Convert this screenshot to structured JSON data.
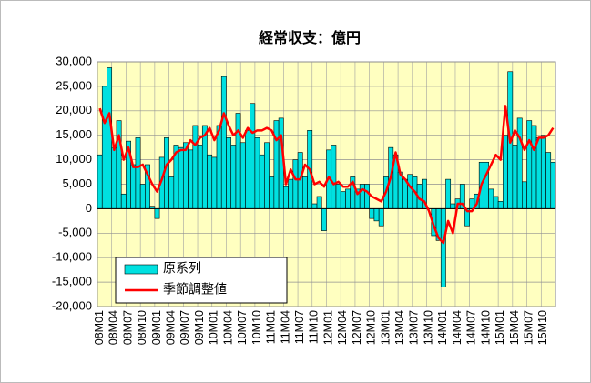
{
  "chart_data": {
    "type": "bar_line",
    "title": "経常収支：億円",
    "categories": [
      "08M01",
      null,
      null,
      "08M04",
      null,
      null,
      "08M07",
      null,
      null,
      "08M10",
      null,
      null,
      "09M01",
      null,
      null,
      "09M04",
      null,
      null,
      "09M07",
      null,
      null,
      "09M10",
      null,
      null,
      "10M01",
      null,
      null,
      "10M04",
      null,
      null,
      "10M07",
      null,
      null,
      "10M10",
      null,
      null,
      "11M01",
      null,
      null,
      "11M04",
      null,
      null,
      "11M07",
      null,
      null,
      "11M10",
      null,
      null,
      "12M01",
      null,
      null,
      "12M04",
      null,
      null,
      "12M07",
      null,
      null,
      "12M10",
      null,
      null,
      "13M01",
      null,
      null,
      "13M04",
      null,
      null,
      "13M07",
      null,
      null,
      "13M10",
      null,
      null,
      "14M01",
      null,
      null,
      "14M04",
      null,
      null,
      "14M07",
      null,
      null,
      "14M10",
      null,
      null,
      "15M01",
      null,
      null,
      "15M04",
      null,
      null,
      "15M07",
      null,
      null,
      "15M10",
      null,
      null
    ],
    "series": [
      {
        "name": "原系列",
        "color": "#00e0e0",
        "kind": "bar",
        "values": [
          11000,
          25000,
          28800,
          12500,
          18000,
          3000,
          13800,
          9000,
          14500,
          5000,
          9000,
          500,
          -2000,
          10500,
          14500,
          6500,
          13000,
          12500,
          13500,
          12000,
          17000,
          13000,
          17000,
          11000,
          10500,
          17000,
          27000,
          14500,
          13000,
          19500,
          13500,
          16000,
          21500,
          14500,
          11000,
          13500,
          6500,
          18000,
          18500,
          4500,
          6000,
          10000,
          11500,
          6500,
          16000,
          1000,
          2500,
          -4500,
          12000,
          13000,
          5000,
          3500,
          4000,
          6500,
          4000,
          5000,
          5000,
          -2000,
          -2500,
          -3500,
          6500,
          12500,
          11000,
          7500,
          6000,
          7000,
          6500,
          5000,
          6000,
          0,
          -5500,
          -6500,
          -16000,
          6000,
          1000,
          2000,
          5000,
          -3500,
          2000,
          3000,
          9500,
          9500,
          4000,
          2500,
          1500,
          15000,
          28000,
          13000,
          18500,
          5500,
          18000,
          17000,
          14500,
          15000,
          11500,
          9500
        ]
      },
      {
        "name": "季節調整値",
        "color": "#ff0000",
        "kind": "line",
        "values": [
          20500,
          17500,
          19500,
          12000,
          15000,
          10000,
          12500,
          8500,
          8500,
          9000,
          7000,
          5000,
          3500,
          6000,
          9000,
          10000,
          11500,
          12000,
          12000,
          14000,
          13000,
          14500,
          15000,
          16500,
          14000,
          16000,
          19500,
          17000,
          15000,
          16000,
          14500,
          16500,
          15500,
          16000,
          16000,
          16500,
          16000,
          14000,
          15000,
          5000,
          8000,
          6000,
          6000,
          9000,
          8000,
          5000,
          5500,
          4500,
          6500,
          5000,
          5500,
          4500,
          4500,
          5500,
          3000,
          4000,
          3500,
          2500,
          2000,
          1500,
          3500,
          6500,
          11500,
          7000,
          6000,
          4500,
          3500,
          2000,
          1500,
          -500,
          -3500,
          -6000,
          -7000,
          -2500,
          -5000,
          1000,
          1000,
          -500,
          -500,
          1000,
          5000,
          7000,
          9000,
          11000,
          10000,
          21000,
          13500,
          16000,
          14500,
          12000,
          14000,
          12000,
          14500,
          14500,
          15000,
          16500
        ]
      }
    ],
    "ylim": [
      -20000,
      30000
    ],
    "yticks": [
      {
        "value": -20000,
        "label": "-20,000"
      },
      {
        "value": -15000,
        "label": "-15,000"
      },
      {
        "value": -10000,
        "label": "-10,000"
      },
      {
        "value": -5000,
        "label": "-5,000"
      },
      0,
      {
        "value": 5000,
        "label": "5,000"
      },
      {
        "value": 10000,
        "label": "10,000"
      },
      {
        "value": 15000,
        "label": "15,000"
      },
      {
        "value": 20000,
        "label": "20,000"
      },
      {
        "value": 25000,
        "label": "25,000"
      },
      {
        "value": 30000,
        "label": "30,000"
      }
    ],
    "grid": true,
    "legend": "lower left"
  }
}
